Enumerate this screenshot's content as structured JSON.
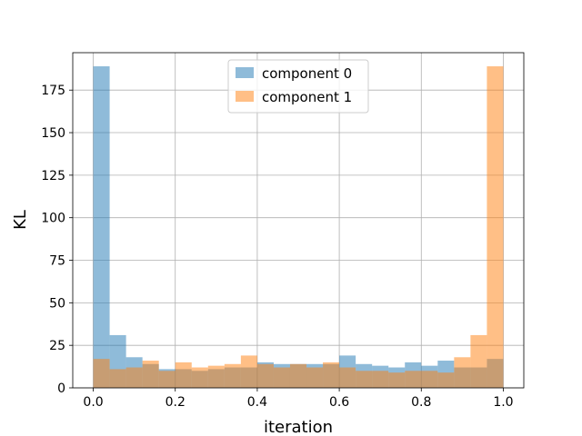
{
  "chart_data": {
    "type": "bar",
    "subtype": "overlaid-histogram",
    "xlabel": "iteration",
    "ylabel": "KL",
    "xlim": [
      -0.05,
      1.05
    ],
    "ylim": [
      0,
      197
    ],
    "grid": true,
    "legend_position": "top-center",
    "bin_edges": [
      0.0,
      0.04,
      0.08,
      0.12,
      0.16,
      0.2,
      0.24,
      0.28,
      0.32,
      0.36,
      0.4,
      0.44,
      0.48,
      0.52,
      0.56,
      0.6,
      0.64,
      0.68,
      0.72,
      0.76,
      0.8,
      0.84,
      0.88,
      0.92,
      0.96,
      1.0
    ],
    "series": [
      {
        "name": "component 0",
        "color": "#1f77b4",
        "values": [
          189,
          31,
          18,
          14,
          11,
          11,
          10,
          11,
          12,
          12,
          15,
          14,
          14,
          14,
          14,
          19,
          14,
          13,
          12,
          15,
          13,
          16,
          12,
          12,
          17
        ]
      },
      {
        "name": "component 1",
        "color": "#ff7f0e",
        "values": [
          17,
          11,
          12,
          16,
          10,
          15,
          12,
          13,
          14,
          19,
          14,
          12,
          14,
          12,
          15,
          12,
          10,
          10,
          9,
          10,
          10,
          9,
          18,
          31,
          189
        ]
      }
    ],
    "x_ticks": [
      "0.0",
      "0.2",
      "0.4",
      "0.6",
      "0.8",
      "1.0"
    ],
    "x_tick_values": [
      0.0,
      0.2,
      0.4,
      0.6,
      0.8,
      1.0
    ],
    "y_ticks": [
      "0",
      "25",
      "50",
      "75",
      "100",
      "125",
      "150",
      "175"
    ],
    "y_tick_values": [
      0,
      25,
      50,
      75,
      100,
      125,
      150,
      175
    ]
  }
}
